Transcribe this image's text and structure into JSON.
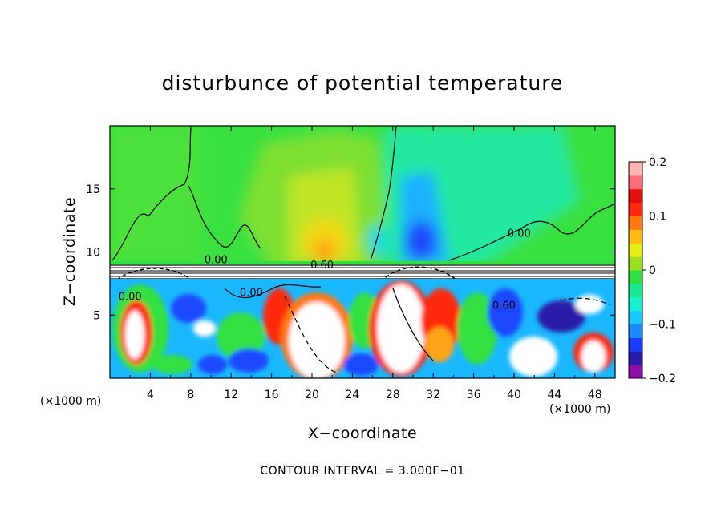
{
  "chart_data": {
    "type": "heatmap",
    "title": "disturbunce of potential temperature",
    "xlabel": "X−coordinate",
    "ylabel": "Z−coordinate",
    "x_unit_left": "(×1000 m)",
    "x_unit_right": "(×1000 m)",
    "footnote": "CONTOUR INTERVAL = 3.000E−01",
    "xlim": [
      0,
      50
    ],
    "ylim": [
      0,
      20
    ],
    "x_ticks": [
      4,
      8,
      12,
      16,
      20,
      24,
      28,
      32,
      36,
      40,
      44,
      48
    ],
    "y_ticks": [
      5,
      10,
      15
    ],
    "colorbar": {
      "range": [
        -0.2,
        0.2
      ],
      "ticks": [
        {
          "value": 0.2,
          "label": "0.2"
        },
        {
          "value": 0.1,
          "label": "0.1"
        },
        {
          "value": 0.0,
          "label": "0"
        },
        {
          "value": -0.1,
          "label": "−0.1"
        },
        {
          "value": -0.2,
          "label": "−0.2"
        }
      ],
      "colors": [
        "#8a10a8",
        "#2a1aa8",
        "#1a3cff",
        "#1e88ff",
        "#18c8ff",
        "#18f0d0",
        "#18e890",
        "#30e040",
        "#9ae020",
        "#e6ec18",
        "#ffb814",
        "#ff7a10",
        "#ff2a10",
        "#e01010",
        "#ff6c78",
        "#ffb4b4"
      ]
    },
    "contour_labels": [
      {
        "text": "0.00",
        "x": 10.5,
        "y": 9.1
      },
      {
        "text": "0.60",
        "x": 21.0,
        "y": 8.7
      },
      {
        "text": "0.00",
        "x": 40.5,
        "y": 11.2
      },
      {
        "text": "0.00",
        "x": 2.0,
        "y": 6.2
      },
      {
        "text": "0.00",
        "x": 14.0,
        "y": 6.5
      },
      {
        "text": "0.60",
        "x": 39.0,
        "y": 5.5
      }
    ],
    "regions": {
      "upper_layer": "z 9–20: near-zero values (green), warmer plume around x 18–26, cooler column around x 26–30",
      "inversion": "z 7.5–9: stable layer with tightly packed contours",
      "lower_layer": "z 0–7.5: turbulent mixed field ranging roughly −0.2 to 0.2 and beyond"
    }
  }
}
